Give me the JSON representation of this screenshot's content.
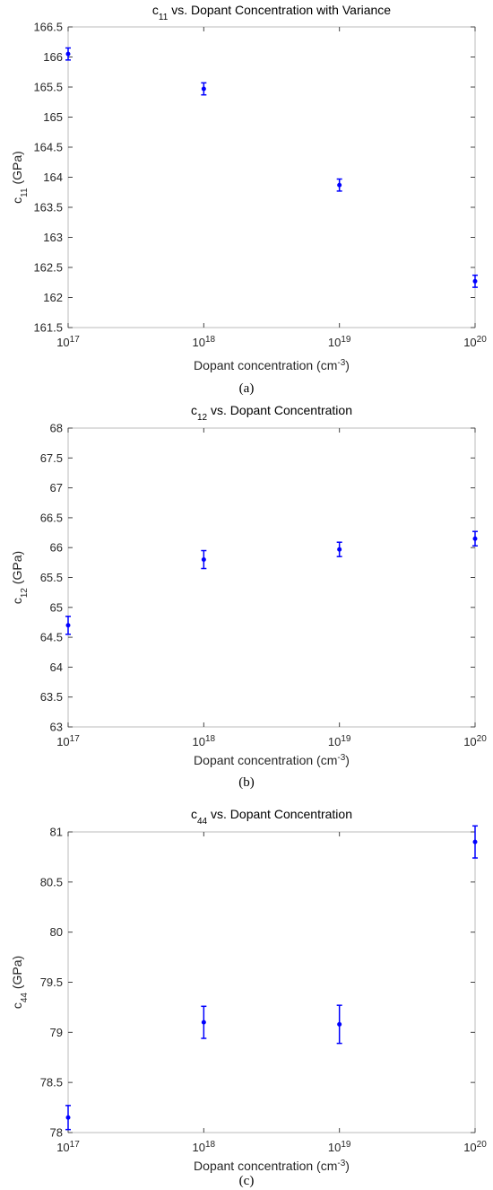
{
  "chart_data": [
    {
      "type": "scatter",
      "title": [
        "c",
        "11",
        " vs. Dopant Concentration with Variance"
      ],
      "xlabel": [
        "Dopant concentration (cm",
        "-3",
        ")"
      ],
      "ylabel": [
        "c",
        "11",
        " (GPa)"
      ],
      "caption": "(a)",
      "x": [
        1e+17,
        1e+18,
        1e+19,
        1e+20
      ],
      "series": [
        {
          "color": "#0000ff",
          "values": [
            166.05,
            165.47,
            163.87,
            162.27
          ],
          "errors": [
            0.1,
            0.1,
            0.1,
            0.1
          ]
        }
      ],
      "xscale": "log",
      "xlim": [
        1e+17,
        1e+20
      ],
      "xticks": [
        {
          "value": 1e+17,
          "label": [
            "10",
            "17"
          ]
        },
        {
          "value": 1e+18,
          "label": [
            "10",
            "18"
          ]
        },
        {
          "value": 1e+19,
          "label": [
            "10",
            "19"
          ]
        },
        {
          "value": 1e+20,
          "label": [
            "10",
            "20"
          ]
        }
      ],
      "ylim": [
        161.5,
        166.5
      ],
      "yticks": [
        161.5,
        162,
        162.5,
        163,
        163.5,
        164,
        164.5,
        165,
        165.5,
        166,
        166.5
      ]
    },
    {
      "type": "scatter",
      "title": [
        "c",
        "12",
        " vs. Dopant Concentration"
      ],
      "xlabel": [
        "Dopant concentration (cm",
        "-3",
        ")"
      ],
      "ylabel": [
        "c",
        "12",
        " (GPa)"
      ],
      "caption": "(b)",
      "x": [
        1e+17,
        1e+18,
        1e+19,
        1e+20
      ],
      "series": [
        {
          "color": "#0000ff",
          "values": [
            64.7,
            65.8,
            65.97,
            66.15
          ],
          "errors": [
            0.15,
            0.15,
            0.12,
            0.12
          ]
        }
      ],
      "xscale": "log",
      "xlim": [
        1e+17,
        1e+20
      ],
      "xticks": [
        {
          "value": 1e+17,
          "label": [
            "10",
            "17"
          ]
        },
        {
          "value": 1e+18,
          "label": [
            "10",
            "18"
          ]
        },
        {
          "value": 1e+19,
          "label": [
            "10",
            "19"
          ]
        },
        {
          "value": 1e+20,
          "label": [
            "10",
            "20"
          ]
        }
      ],
      "ylim": [
        63,
        68
      ],
      "yticks": [
        63,
        63.5,
        64,
        64.5,
        65,
        65.5,
        66,
        66.5,
        67,
        67.5,
        68
      ]
    },
    {
      "type": "scatter",
      "title": [
        "c",
        "44",
        " vs. Dopant Concentration"
      ],
      "xlabel": [
        "Dopant concentration (cm",
        "-3",
        ")"
      ],
      "ylabel": [
        "c",
        "44",
        " (GPa)"
      ],
      "caption": "(c)",
      "x": [
        1e+17,
        1e+18,
        1e+19,
        1e+20
      ],
      "series": [
        {
          "color": "#0000ff",
          "values": [
            78.15,
            79.1,
            79.08,
            80.9
          ],
          "errors": [
            0.12,
            0.16,
            0.19,
            0.16
          ]
        }
      ],
      "xscale": "log",
      "xlim": [
        1e+17,
        1e+20
      ],
      "xticks": [
        {
          "value": 1e+17,
          "label": [
            "10",
            "17"
          ]
        },
        {
          "value": 1e+18,
          "label": [
            "10",
            "18"
          ]
        },
        {
          "value": 1e+19,
          "label": [
            "10",
            "19"
          ]
        },
        {
          "value": 1e+20,
          "label": [
            "10",
            "20"
          ]
        }
      ],
      "ylim": [
        78,
        81
      ],
      "yticks": [
        78,
        78.5,
        79,
        79.5,
        80,
        80.5,
        81
      ]
    }
  ]
}
